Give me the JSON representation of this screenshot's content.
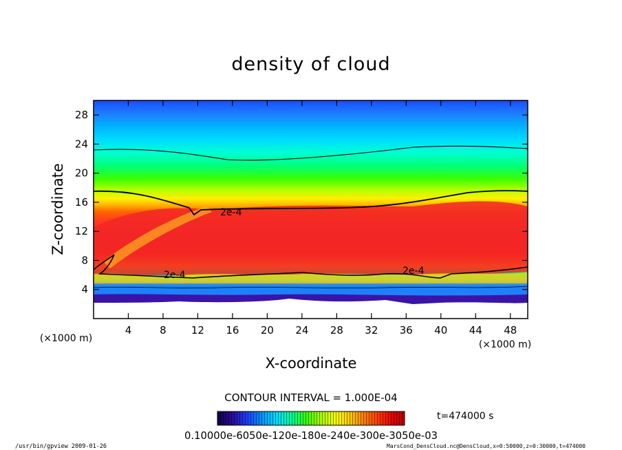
{
  "chart_data": {
    "type": "heatmap",
    "title": "density of cloud",
    "xlabel": "X-coordinate",
    "ylabel": "Z-coordinate",
    "x_unit": "(×1000 m)",
    "y_unit": "(×1000 m)",
    "xlim": [
      0,
      50
    ],
    "ylim": [
      0,
      30
    ],
    "xticks": [
      4,
      8,
      12,
      16,
      20,
      24,
      28,
      32,
      36,
      40,
      44,
      48
    ],
    "yticks": [
      4,
      8,
      12,
      16,
      20,
      24,
      28
    ],
    "contour_label": "2e-4",
    "contour_interval_text": "CONTOUR INTERVAL = 1.000E-04",
    "time_text": "t=474000 s",
    "colorbar_labels_text": "0.10000e-6050e-120e-180e-240e-300e-3050e-03",
    "colorbar_colors": [
      "#10004a",
      "#2a0a9a",
      "#1e40ff",
      "#0099ff",
      "#00e0ff",
      "#00ff90",
      "#40ff00",
      "#b0ff00",
      "#ffff00",
      "#ffc000",
      "#ff7000",
      "#ff2a00",
      "#e00000",
      "#c00000"
    ]
  },
  "footer": {
    "left": "/usr/bin/gpview   2009-01-26",
    "right": "MarsCond_DensCloud.nc@DensCloud,x=0:50000,z=0:30000,t=474000"
  }
}
